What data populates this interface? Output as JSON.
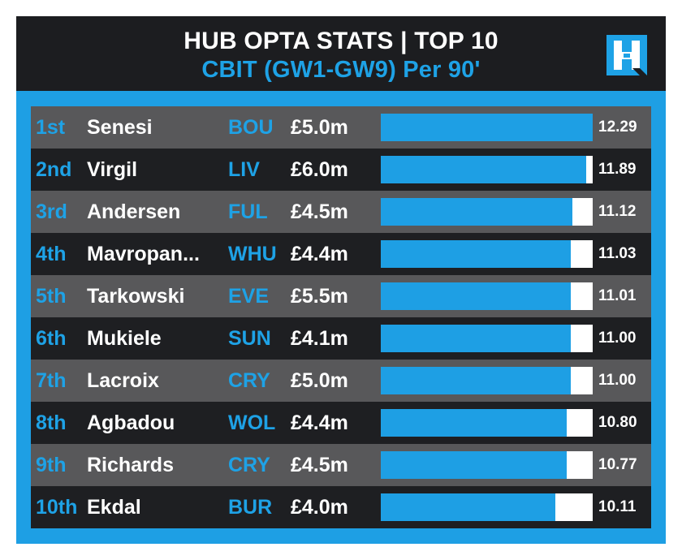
{
  "header": {
    "title_line1": "HUB OPTA STATS | TOP 10",
    "title_line2": "CBIT (GW1-GW9) Per 90'"
  },
  "logo": {
    "icon": "hub-h-logo",
    "color": "#1ea2e6"
  },
  "colors": {
    "background": "#1c1d20",
    "accent": "#1e9fe4",
    "row_light": "#58585a",
    "row_dark": "#1e1f22",
    "bar_track": "#ffffff"
  },
  "chart_data": {
    "type": "bar",
    "orientation": "horizontal",
    "title": "HUB OPTA STATS | TOP 10",
    "subtitle": "CBIT (GW1-GW9) Per 90'",
    "xlim": [
      0,
      12.29
    ],
    "rows": [
      {
        "rank": "1st",
        "name": "Senesi",
        "team": "BOU",
        "price": "£5.0m",
        "value": 12.29,
        "value_label": "12.29"
      },
      {
        "rank": "2nd",
        "name": "Virgil",
        "team": "LIV",
        "price": "£6.0m",
        "value": 11.89,
        "value_label": "11.89"
      },
      {
        "rank": "3rd",
        "name": "Andersen",
        "team": "FUL",
        "price": "£4.5m",
        "value": 11.12,
        "value_label": "11.12"
      },
      {
        "rank": "4th",
        "name": "Mavropan...",
        "team": "WHU",
        "price": "£4.4m",
        "value": 11.03,
        "value_label": "11.03"
      },
      {
        "rank": "5th",
        "name": "Tarkowski",
        "team": "EVE",
        "price": "£5.5m",
        "value": 11.01,
        "value_label": "11.01"
      },
      {
        "rank": "6th",
        "name": "Mukiele",
        "team": "SUN",
        "price": "£4.1m",
        "value": 11.0,
        "value_label": "11.00"
      },
      {
        "rank": "7th",
        "name": "Lacroix",
        "team": "CRY",
        "price": "£5.0m",
        "value": 11.0,
        "value_label": "11.00"
      },
      {
        "rank": "8th",
        "name": "Agbadou",
        "team": "WOL",
        "price": "£4.4m",
        "value": 10.8,
        "value_label": "10.80"
      },
      {
        "rank": "9th",
        "name": "Richards",
        "team": "CRY",
        "price": "£4.5m",
        "value": 10.77,
        "value_label": "10.77"
      },
      {
        "rank": "10th",
        "name": "Ekdal",
        "team": "BUR",
        "price": "£4.0m",
        "value": 10.11,
        "value_label": "10.11"
      }
    ]
  }
}
